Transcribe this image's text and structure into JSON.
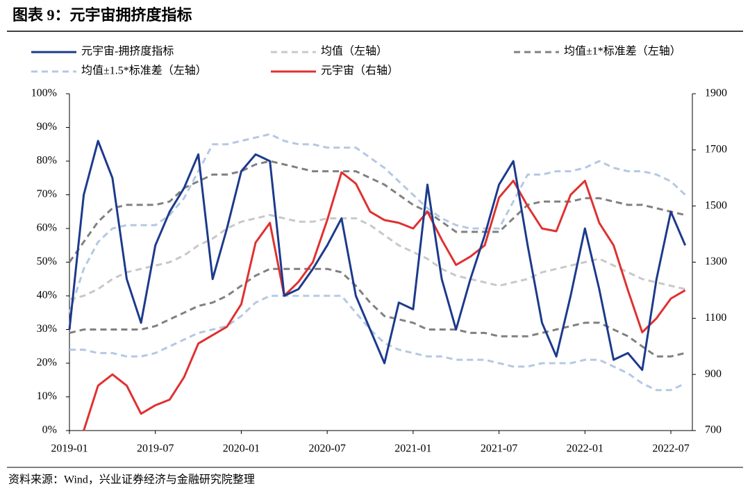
{
  "chart_data": {
    "type": "line",
    "title": "图表 9：元宇宙拥挤度指标",
    "source": "资料来源：Wind，兴业证券经济与金融研究院整理",
    "x": [
      "2019-01",
      "2019-02",
      "2019-03",
      "2019-04",
      "2019-05",
      "2019-06",
      "2019-07",
      "2019-08",
      "2019-09",
      "2019-10",
      "2019-11",
      "2019-12",
      "2020-01",
      "2020-02",
      "2020-03",
      "2020-04",
      "2020-05",
      "2020-06",
      "2020-07",
      "2020-08",
      "2020-09",
      "2020-10",
      "2020-11",
      "2020-12",
      "2021-01",
      "2021-02",
      "2021-03",
      "2021-04",
      "2021-05",
      "2021-06",
      "2021-07",
      "2021-08",
      "2021-09",
      "2021-10",
      "2021-11",
      "2021-12",
      "2022-01",
      "2022-02",
      "2022-03",
      "2022-04",
      "2022-05",
      "2022-06",
      "2022-07",
      "2022-08"
    ],
    "xticks": [
      "2019-01",
      "2019-07",
      "2020-01",
      "2020-07",
      "2021-01",
      "2021-07",
      "2022-01",
      "2022-07"
    ],
    "ylim": [
      0,
      100
    ],
    "yticks": [
      {
        "value": 0,
        "label": "0%"
      },
      {
        "value": 10,
        "label": "10%"
      },
      {
        "value": 20,
        "label": "20%"
      },
      {
        "value": 30,
        "label": "30%"
      },
      {
        "value": 40,
        "label": "40%"
      },
      {
        "value": 50,
        "label": "50%"
      },
      {
        "value": 60,
        "label": "60%"
      },
      {
        "value": 70,
        "label": "70%"
      },
      {
        "value": 80,
        "label": "80%"
      },
      {
        "value": 90,
        "label": "90%"
      },
      {
        "value": 100,
        "label": "100%"
      }
    ],
    "y2lim": [
      700,
      1900
    ],
    "y2ticks": [
      700,
      900,
      1100,
      1300,
      1500,
      1700,
      1900
    ],
    "series": [
      {
        "name": "元宇宙-拥挤度指标",
        "color": "#1c3a8c",
        "values": [
          30,
          70,
          86,
          75,
          45,
          32,
          55,
          65,
          72,
          82,
          45,
          60,
          77,
          82,
          80,
          40,
          42,
          48,
          55,
          63,
          40,
          30,
          20,
          38,
          36,
          73,
          45,
          30,
          45,
          58,
          73,
          80,
          55,
          32,
          22,
          40,
          60,
          42,
          21,
          23,
          18,
          45,
          65,
          55
        ]
      },
      {
        "name": "均值（左轴）",
        "color": "#c8c8c8",
        "dashed": true,
        "values": [
          39,
          40,
          42,
          45,
          47,
          48,
          49,
          50,
          52,
          55,
          57,
          60,
          62,
          63,
          64,
          63,
          62,
          62,
          63,
          63,
          63,
          61,
          58,
          55,
          53,
          51,
          48,
          46,
          45,
          44,
          43,
          44,
          45,
          47,
          48,
          49,
          50,
          51,
          49,
          47,
          45,
          44,
          43,
          42
        ]
      },
      {
        "name": "均值±1*标准差（左轴）",
        "color": "#808080",
        "dashed": true,
        "values": [
          50,
          56,
          62,
          66,
          67,
          67,
          67,
          68,
          72,
          74,
          76,
          76,
          77,
          79,
          80,
          79,
          78,
          77,
          77,
          77,
          77,
          75,
          73,
          70,
          67,
          65,
          62,
          59,
          59,
          59,
          59,
          63,
          67,
          68,
          68,
          68,
          69,
          69,
          68,
          67,
          67,
          66,
          65,
          64
        ],
        "lower": [
          29,
          30,
          30,
          30,
          30,
          30,
          31,
          33,
          35,
          37,
          38,
          40,
          43,
          46,
          48,
          48,
          48,
          48,
          48,
          47,
          43,
          38,
          34,
          33,
          32,
          30,
          30,
          30,
          29,
          29,
          28,
          28,
          28,
          29,
          30,
          31,
          32,
          32,
          30,
          28,
          25,
          22,
          22,
          23
        ]
      },
      {
        "name": "均值±1.5*标准差（左轴）",
        "color": "#b4c8e4",
        "dashed": true,
        "values": [
          35,
          48,
          56,
          60,
          61,
          61,
          61,
          64,
          69,
          77,
          85,
          85,
          86,
          87,
          88,
          86,
          85,
          85,
          84,
          84,
          84,
          81,
          78,
          74,
          70,
          66,
          63,
          61,
          60,
          60,
          60,
          68,
          76,
          76,
          77,
          77,
          78,
          80,
          78,
          77,
          77,
          76,
          74,
          70
        ],
        "lower": [
          24,
          24,
          23,
          23,
          22,
          22,
          23,
          25,
          27,
          29,
          30,
          31,
          34,
          38,
          40,
          40,
          40,
          40,
          40,
          40,
          35,
          30,
          26,
          24,
          23,
          22,
          22,
          21,
          21,
          21,
          20,
          19,
          19,
          20,
          20,
          20,
          21,
          21,
          19,
          17,
          14,
          12,
          12,
          14
        ]
      },
      {
        "name": "元宇宙（右轴）",
        "color": "#e03030",
        "axis": "y2",
        "values": [
          null,
          700,
          860,
          900,
          860,
          760,
          790,
          810,
          890,
          1010,
          1040,
          1070,
          1150,
          1370,
          1440,
          1180,
          1230,
          1300,
          1450,
          1620,
          1580,
          1480,
          1450,
          1440,
          1420,
          1480,
          1380,
          1290,
          1320,
          1360,
          1530,
          1590,
          1500,
          1420,
          1410,
          1540,
          1590,
          1440,
          1360,
          1200,
          1050,
          1100,
          1170,
          1200
        ]
      }
    ]
  }
}
